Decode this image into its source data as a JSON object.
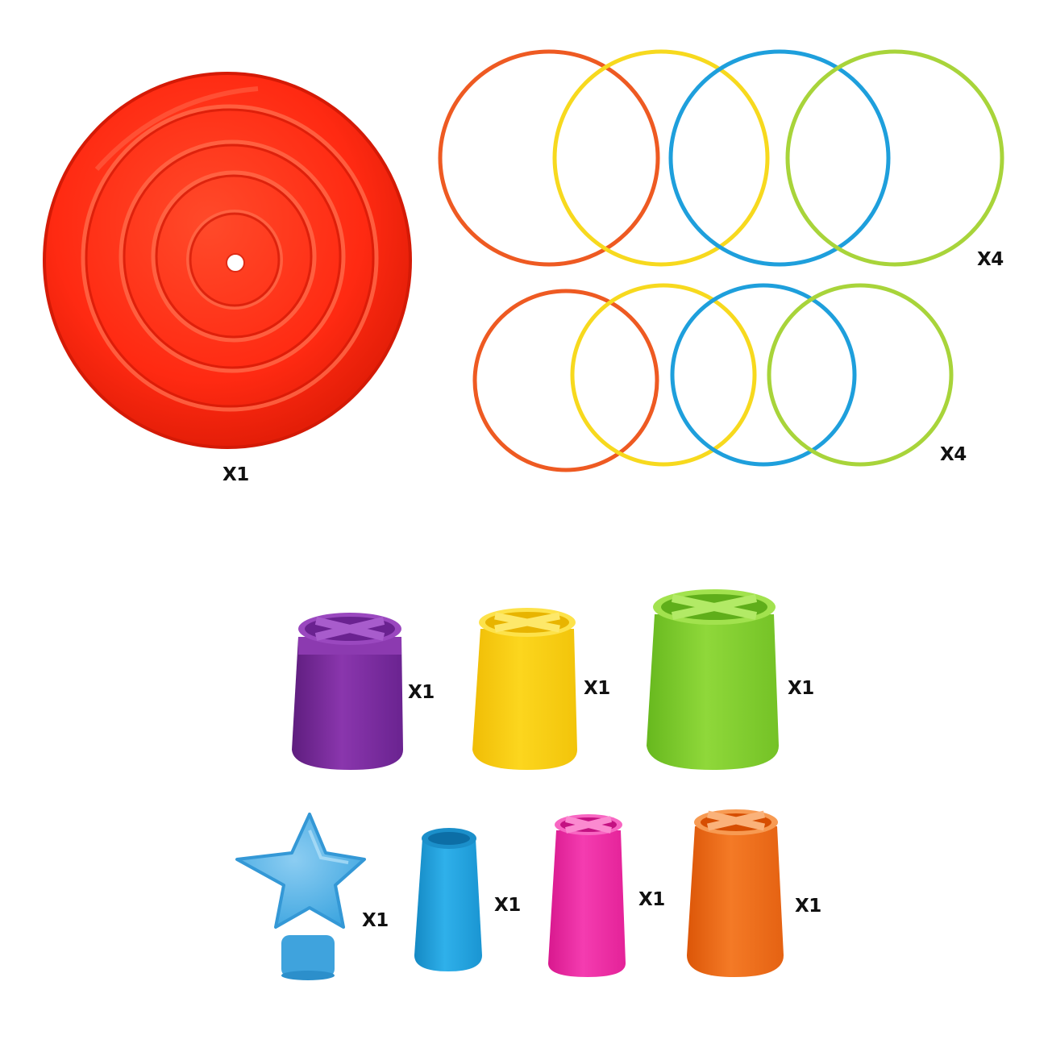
{
  "labels": {
    "base": "X1",
    "rings_top": "X4",
    "rings_bottom": "X4",
    "cup_purple": "X1",
    "cup_yellow": "X1",
    "cup_green": "X1",
    "star_topper": "X1",
    "tube_blue": "X1",
    "cup_pink": "X1",
    "cup_orange": "X1"
  },
  "colors": {
    "base": "#ff2a12",
    "ring_orange": "#ee5a22",
    "ring_yellow": "#f7d91e",
    "ring_blue": "#1e9fdc",
    "ring_green": "#a8d43a",
    "cup_purple": "#7a2a9c",
    "cup_yellow": "#f9cf12",
    "cup_green": "#7fcc2c",
    "star_blue": "#4fb2e6",
    "tube_blue": "#1fa0dc",
    "cup_pink": "#f02aa4",
    "cup_orange": "#f06a18"
  }
}
